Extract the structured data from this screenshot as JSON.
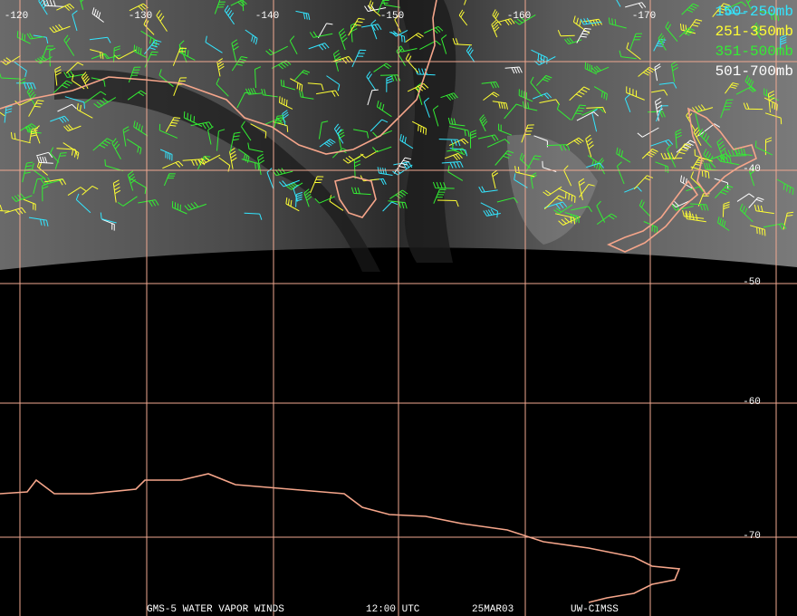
{
  "map": {
    "longitude_labels": [
      "-120",
      "-130",
      "-140",
      "-150",
      "-160",
      "-170"
    ],
    "latitude_labels": [
      "-40",
      "-50",
      "-60",
      "-70"
    ],
    "legend": [
      {
        "label": "150-250mb",
        "color": "#33e6ff"
      },
      {
        "label": "251-350mb",
        "color": "#ffff33"
      },
      {
        "label": "351-500mb",
        "color": "#33ee33"
      },
      {
        "label": "501-700mb",
        "color": "#ffffff"
      }
    ],
    "footer": [
      "GMS-5 WATER VAPOR WINDS",
      "12:00 UTC",
      "25MAR03",
      "UW-CIMSS"
    ]
  }
}
